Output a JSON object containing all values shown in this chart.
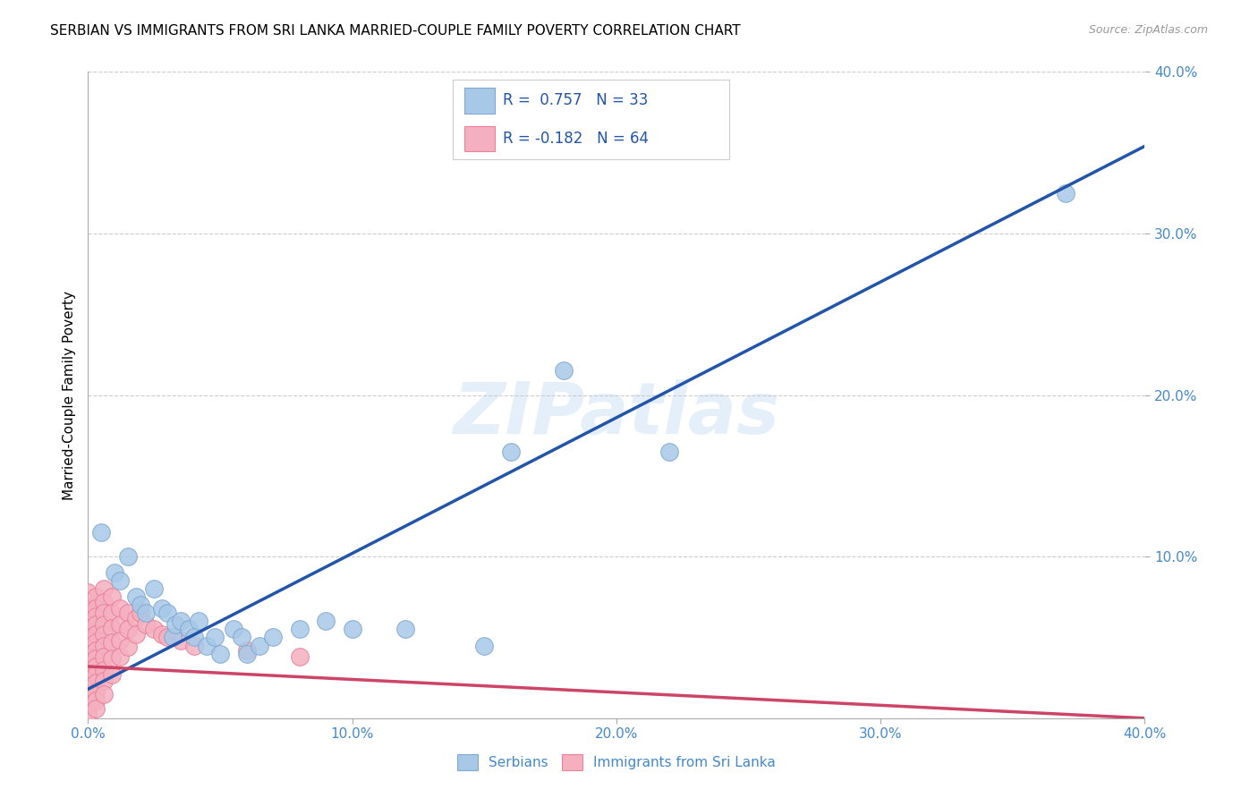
{
  "title": "SERBIAN VS IMMIGRANTS FROM SRI LANKA MARRIED-COUPLE FAMILY POVERTY CORRELATION CHART",
  "source": "Source: ZipAtlas.com",
  "ylabel": "Married-Couple Family Poverty",
  "xlim": [
    0.0,
    0.4
  ],
  "ylim": [
    0.0,
    0.4
  ],
  "xticks": [
    0.0,
    0.1,
    0.2,
    0.3,
    0.4
  ],
  "yticks": [
    0.1,
    0.2,
    0.3,
    0.4
  ],
  "xtick_labels": [
    "0.0%",
    "10.0%",
    "20.0%",
    "30.0%",
    "40.0%"
  ],
  "ytick_labels": [
    "10.0%",
    "20.0%",
    "30.0%",
    "40.0%"
  ],
  "serbian_color": "#a8c8e8",
  "srilanka_color": "#f5b0c0",
  "serbian_edge": "#80a8d0",
  "srilanka_edge": "#e88098",
  "blue_line_color": "#2255aa",
  "pink_line_color": "#cc4466",
  "legend_serbian_R": "0.757",
  "legend_serbian_N": "33",
  "legend_srilanka_R": "-0.182",
  "legend_srilanka_N": "64",
  "watermark": "ZIPatlas",
  "legend_label_serbian": "Serbians",
  "legend_label_srilanka": "Immigrants from Sri Lanka",
  "serbian_dots": [
    [
      0.005,
      0.115
    ],
    [
      0.01,
      0.09
    ],
    [
      0.012,
      0.085
    ],
    [
      0.015,
      0.1
    ],
    [
      0.018,
      0.075
    ],
    [
      0.02,
      0.07
    ],
    [
      0.022,
      0.065
    ],
    [
      0.025,
      0.08
    ],
    [
      0.028,
      0.068
    ],
    [
      0.03,
      0.065
    ],
    [
      0.032,
      0.05
    ],
    [
      0.033,
      0.058
    ],
    [
      0.035,
      0.06
    ],
    [
      0.038,
      0.055
    ],
    [
      0.04,
      0.05
    ],
    [
      0.042,
      0.06
    ],
    [
      0.045,
      0.045
    ],
    [
      0.048,
      0.05
    ],
    [
      0.05,
      0.04
    ],
    [
      0.055,
      0.055
    ],
    [
      0.058,
      0.05
    ],
    [
      0.06,
      0.04
    ],
    [
      0.065,
      0.045
    ],
    [
      0.07,
      0.05
    ],
    [
      0.08,
      0.055
    ],
    [
      0.09,
      0.06
    ],
    [
      0.1,
      0.055
    ],
    [
      0.12,
      0.055
    ],
    [
      0.15,
      0.045
    ],
    [
      0.16,
      0.165
    ],
    [
      0.18,
      0.215
    ],
    [
      0.22,
      0.165
    ],
    [
      0.37,
      0.325
    ]
  ],
  "srilanka_dots": [
    [
      0.0,
      0.078
    ],
    [
      0.0,
      0.072
    ],
    [
      0.0,
      0.068
    ],
    [
      0.0,
      0.063
    ],
    [
      0.0,
      0.058
    ],
    [
      0.0,
      0.053
    ],
    [
      0.0,
      0.048
    ],
    [
      0.0,
      0.043
    ],
    [
      0.0,
      0.038
    ],
    [
      0.0,
      0.033
    ],
    [
      0.0,
      0.028
    ],
    [
      0.0,
      0.023
    ],
    [
      0.0,
      0.018
    ],
    [
      0.0,
      0.013
    ],
    [
      0.0,
      0.008
    ],
    [
      0.0,
      0.003
    ],
    [
      0.003,
      0.075
    ],
    [
      0.003,
      0.068
    ],
    [
      0.003,
      0.063
    ],
    [
      0.003,
      0.058
    ],
    [
      0.003,
      0.052
    ],
    [
      0.003,
      0.047
    ],
    [
      0.003,
      0.042
    ],
    [
      0.003,
      0.037
    ],
    [
      0.003,
      0.032
    ],
    [
      0.003,
      0.027
    ],
    [
      0.003,
      0.022
    ],
    [
      0.003,
      0.016
    ],
    [
      0.003,
      0.011
    ],
    [
      0.003,
      0.006
    ],
    [
      0.006,
      0.08
    ],
    [
      0.006,
      0.072
    ],
    [
      0.006,
      0.065
    ],
    [
      0.006,
      0.058
    ],
    [
      0.006,
      0.052
    ],
    [
      0.006,
      0.045
    ],
    [
      0.006,
      0.038
    ],
    [
      0.006,
      0.03
    ],
    [
      0.006,
      0.023
    ],
    [
      0.006,
      0.015
    ],
    [
      0.009,
      0.075
    ],
    [
      0.009,
      0.065
    ],
    [
      0.009,
      0.056
    ],
    [
      0.009,
      0.047
    ],
    [
      0.009,
      0.037
    ],
    [
      0.009,
      0.027
    ],
    [
      0.012,
      0.068
    ],
    [
      0.012,
      0.058
    ],
    [
      0.012,
      0.048
    ],
    [
      0.012,
      0.038
    ],
    [
      0.015,
      0.065
    ],
    [
      0.015,
      0.055
    ],
    [
      0.015,
      0.044
    ],
    [
      0.018,
      0.062
    ],
    [
      0.018,
      0.052
    ],
    [
      0.02,
      0.065
    ],
    [
      0.022,
      0.058
    ],
    [
      0.025,
      0.055
    ],
    [
      0.028,
      0.052
    ],
    [
      0.03,
      0.05
    ],
    [
      0.035,
      0.048
    ],
    [
      0.04,
      0.045
    ],
    [
      0.06,
      0.042
    ],
    [
      0.08,
      0.038
    ]
  ],
  "grid_color": "#cccccc",
  "background_color": "#ffffff",
  "title_fontsize": 11,
  "axis_tick_color": "#4488cc",
  "axis_tick_fontsize": 11,
  "blue_line_slope": 0.84,
  "blue_line_intercept": 0.018,
  "pink_line_slope": -0.08,
  "pink_line_intercept": 0.032
}
